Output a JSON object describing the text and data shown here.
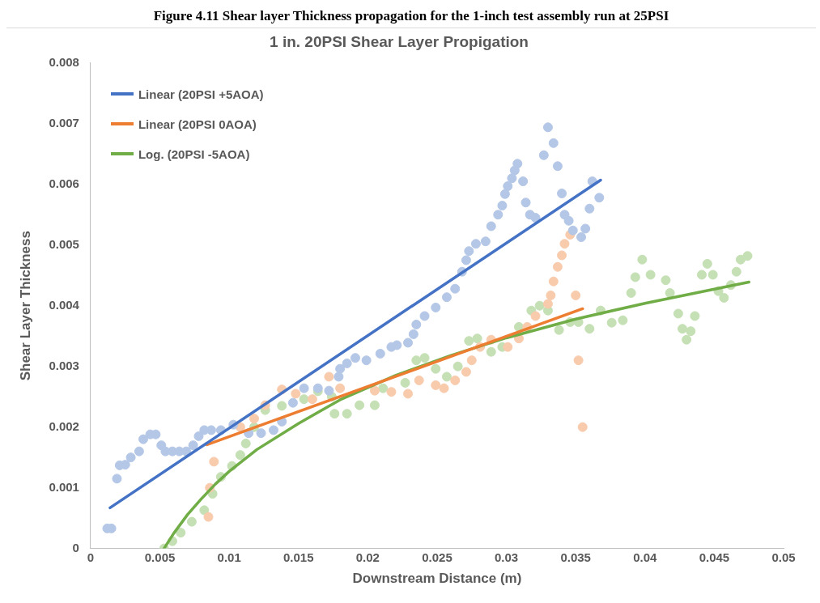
{
  "chart_data": {
    "type": "scatter",
    "title": "1 in. 20PSI Shear Layer Propigation",
    "xlabel": "Downstream Distance (m)",
    "ylabel": "Shear Layer Thickness",
    "annotations": [
      "Figure 4.11 Shear layer Thickness propagation for the 1-inch test assembly run at 25PSI"
    ],
    "xlim": [
      0,
      0.05
    ],
    "xticks": [
      0,
      0.005,
      0.01,
      0.015,
      0.02,
      0.025,
      0.03,
      0.035,
      0.04,
      0.045,
      0.05
    ],
    "ylim": [
      0,
      0.008
    ],
    "yticks": [
      0,
      0.001,
      0.002,
      0.003,
      0.004,
      0.005,
      0.006,
      0.007,
      0.008
    ],
    "marker": "circle",
    "legend": "top left",
    "series": [
      {
        "type": "scatter",
        "color": "#b4c7e7",
        "x": [
          0.0012,
          0.0015,
          0.0019,
          0.0021,
          0.0025,
          0.0029,
          0.0035,
          0.0038,
          0.0043,
          0.0047,
          0.0051,
          0.0054,
          0.0059,
          0.0064,
          0.0069,
          0.0074,
          0.0078,
          0.0082,
          0.0087,
          0.0094,
          0.0103,
          0.0114,
          0.0123,
          0.0132,
          0.0138,
          0.0146,
          0.0154,
          0.0164,
          0.0172,
          0.0179,
          0.018,
          0.0185,
          0.0191,
          0.0199,
          0.0209,
          0.0217,
          0.0221,
          0.0229,
          0.0233,
          0.0235,
          0.0241,
          0.0249,
          0.0257,
          0.0263,
          0.0268,
          0.0271,
          0.0273,
          0.0278,
          0.0285,
          0.0289,
          0.0294,
          0.0297,
          0.0299,
          0.0301,
          0.0304,
          0.0306,
          0.0308,
          0.0312,
          0.0314,
          0.0317,
          0.0321,
          0.0327,
          0.033,
          0.0334,
          0.0337,
          0.034,
          0.0342,
          0.0345,
          0.0348,
          0.0354,
          0.0357,
          0.036,
          0.0362,
          0.0367
        ],
        "values": [
          0.00033,
          0.00033,
          0.00115,
          0.00137,
          0.00138,
          0.0015,
          0.0016,
          0.0018,
          0.00188,
          0.00188,
          0.0017,
          0.0016,
          0.0016,
          0.0016,
          0.0016,
          0.0017,
          0.00185,
          0.00195,
          0.00195,
          0.00195,
          0.00204,
          0.0019,
          0.0019,
          0.00195,
          0.00209,
          0.0024,
          0.00264,
          0.00264,
          0.0026,
          0.00283,
          0.00296,
          0.00305,
          0.00314,
          0.0031,
          0.00321,
          0.00332,
          0.00335,
          0.00339,
          0.00353,
          0.00369,
          0.00383,
          0.00397,
          0.00414,
          0.00428,
          0.00456,
          0.00475,
          0.0049,
          0.00502,
          0.00506,
          0.00531,
          0.0055,
          0.00565,
          0.00584,
          0.00597,
          0.0061,
          0.00623,
          0.00634,
          0.00605,
          0.0057,
          0.0055,
          0.00545,
          0.00648,
          0.00694,
          0.00668,
          0.0063,
          0.00585,
          0.0055,
          0.0054,
          0.00524,
          0.00513,
          0.00527,
          0.0056,
          0.00605,
          0.00578
        ]
      },
      {
        "type": "scatter",
        "color": "#f8cbad",
        "x": [
          0.0085,
          0.0086,
          0.0089,
          0.0097,
          0.0108,
          0.0118,
          0.0126,
          0.0138,
          0.0148,
          0.016,
          0.017,
          0.0172,
          0.018,
          0.0192,
          0.0205,
          0.0217,
          0.0229,
          0.0237,
          0.0249,
          0.0255,
          0.0263,
          0.0271,
          0.0275,
          0.0281,
          0.0289,
          0.0301,
          0.0309,
          0.0315,
          0.0321,
          0.033,
          0.0332,
          0.0334,
          0.0337,
          0.034,
          0.0342,
          0.0346,
          0.035,
          0.0352,
          0.0355
        ],
        "values": [
          0.00052,
          0.001,
          0.00143,
          null,
          0.002,
          0.00214,
          0.00236,
          0.00262,
          0.00255,
          0.00246,
          null,
          0.00283,
          0.00264,
          null,
          0.0026,
          0.00258,
          0.00255,
          0.00277,
          0.00269,
          0.00264,
          0.00277,
          0.00291,
          0.0031,
          0.00332,
          0.00344,
          0.00332,
          0.00346,
          0.00365,
          0.00383,
          0.00403,
          0.00417,
          0.0044,
          0.00464,
          0.00483,
          0.00502,
          0.00517,
          0.00417,
          0.0031,
          0.002
        ]
      },
      {
        "type": "scatter",
        "color": "#c5e0b4",
        "x": [
          0.0053,
          0.0059,
          0.0065,
          0.0073,
          0.0082,
          0.0088,
          0.0094,
          0.0102,
          0.0108,
          0.0112,
          0.0118,
          0.0126,
          0.0138,
          0.0154,
          0.0164,
          0.0174,
          0.0176,
          0.0185,
          0.0194,
          0.0205,
          0.0211,
          0.0227,
          0.0235,
          0.0241,
          0.0249,
          0.0257,
          0.0265,
          0.0273,
          0.0279,
          0.0289,
          0.0297,
          0.0309,
          0.0318,
          0.0324,
          0.033,
          0.0338,
          0.0346,
          0.0352,
          0.036,
          0.0368,
          0.0376,
          0.0384,
          0.039,
          0.0393,
          0.0398,
          0.0404,
          0.0415,
          0.0418,
          0.0424,
          0.0427,
          0.043,
          0.0433,
          0.0436,
          0.0441,
          0.0445,
          0.0449,
          0.0453,
          0.0457,
          0.0462,
          0.0466,
          0.0469,
          0.0474
        ],
        "values": [
          0.0,
          0.00012,
          0.00026,
          0.00044,
          0.00063,
          0.0009,
          0.00118,
          0.00136,
          0.00154,
          0.00173,
          0.002,
          0.00228,
          0.00235,
          0.00246,
          0.00259,
          0.0025,
          0.00222,
          0.00222,
          0.00236,
          0.00236,
          0.00264,
          0.00273,
          0.0031,
          0.00314,
          0.00296,
          0.00283,
          0.003,
          0.00342,
          0.00346,
          0.00324,
          0.00332,
          0.00365,
          0.00392,
          0.004,
          0.00392,
          0.0036,
          0.00373,
          0.00373,
          0.00362,
          0.00392,
          0.00372,
          0.00376,
          0.00421,
          0.00447,
          0.00476,
          0.00451,
          0.00442,
          0.00421,
          0.00387,
          0.00362,
          0.00344,
          0.00358,
          0.00383,
          0.00451,
          0.00469,
          0.00451,
          0.00424,
          0.00413,
          0.00434,
          0.00456,
          0.00476,
          0.00482
        ]
      },
      {
        "type": "line",
        "name": "Linear (20PSI +5AOA)",
        "color": "#4472c4",
        "marker": "none",
        "x": [
          0.0014,
          0.0368
        ],
        "values": [
          0.00067,
          0.00607
        ]
      },
      {
        "type": "line",
        "name": "Linear (20PSI 0AOA)",
        "color": "#ed7d31",
        "marker": "none",
        "x": [
          0.0084,
          0.0355
        ],
        "values": [
          0.00171,
          0.00395
        ]
      },
      {
        "type": "line",
        "name": "Log. (20PSI -5AOA)",
        "color": "#70ad47",
        "marker": "none",
        "x": [
          0.0053,
          0.006,
          0.007,
          0.008,
          0.009,
          0.01,
          0.012,
          0.015,
          0.018,
          0.022,
          0.026,
          0.03,
          0.035,
          0.04,
          0.0475
        ],
        "values": [
          0.0,
          0.00025,
          0.00056,
          0.00082,
          0.00106,
          0.00127,
          0.00163,
          0.00206,
          0.00245,
          0.00285,
          0.00318,
          0.00347,
          0.00378,
          0.00404,
          0.00439
        ]
      }
    ]
  }
}
